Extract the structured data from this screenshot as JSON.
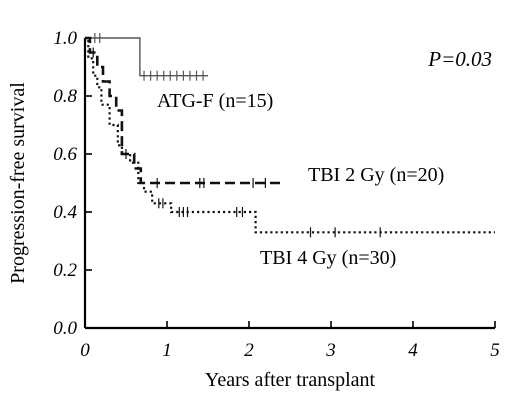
{
  "chart_data": {
    "type": "line",
    "title": "",
    "xlabel": "Years after transplant",
    "ylabel": "Progression-free survival",
    "xlim": [
      0,
      5
    ],
    "ylim": [
      0.0,
      1.0
    ],
    "x_ticks": [
      0,
      1,
      2,
      3,
      4,
      5
    ],
    "x_tick_labels": [
      "0",
      "1",
      "2",
      "3",
      "4",
      "5"
    ],
    "y_ticks": [
      0.0,
      0.2,
      0.4,
      0.6,
      0.8,
      1.0
    ],
    "y_tick_labels": [
      "0.0",
      "0.2",
      "0.4",
      "0.6",
      "0.8",
      "1.0"
    ],
    "annotation": "P=0.03",
    "series": [
      {
        "label": "ATG-F (n=15)",
        "line_style": "solid",
        "color": "#555555",
        "x": [
          0,
          0.67,
          0.67,
          1.5
        ],
        "y": [
          1.0,
          1.0,
          0.87,
          0.87
        ],
        "censor_x": [
          0.12,
          0.18,
          0.72,
          0.8,
          0.88,
          0.96,
          1.04,
          1.12,
          1.2,
          1.28,
          1.36,
          1.44
        ],
        "censor_y": [
          1.0,
          1.0,
          0.87,
          0.87,
          0.87,
          0.87,
          0.87,
          0.87,
          0.87,
          0.87,
          0.87,
          0.87
        ]
      },
      {
        "label": "TBI 2 Gy (n=20)",
        "line_style": "dashed",
        "color": "#111111",
        "x": [
          0,
          0.06,
          0.06,
          0.15,
          0.15,
          0.22,
          0.22,
          0.3,
          0.3,
          0.38,
          0.38,
          0.45,
          0.45,
          0.6,
          0.6,
          0.68,
          0.68,
          2.4
        ],
        "y": [
          1.0,
          1.0,
          0.95,
          0.95,
          0.9,
          0.9,
          0.85,
          0.85,
          0.8,
          0.8,
          0.75,
          0.75,
          0.6,
          0.6,
          0.55,
          0.55,
          0.5,
          0.5
        ],
        "censor_x": [
          0.1,
          0.5,
          0.88,
          1.4,
          1.45,
          2.05,
          2.2
        ],
        "censor_y": [
          0.95,
          0.6,
          0.5,
          0.5,
          0.5,
          0.5,
          0.5
        ]
      },
      {
        "label": "TBI 4 Gy (n=30)",
        "line_style": "dotted",
        "color": "#111111",
        "x": [
          0,
          0.04,
          0.04,
          0.1,
          0.1,
          0.15,
          0.15,
          0.2,
          0.2,
          0.3,
          0.3,
          0.4,
          0.4,
          0.45,
          0.45,
          0.55,
          0.55,
          0.65,
          0.65,
          0.72,
          0.72,
          0.82,
          0.82,
          1.05,
          1.05,
          2.08,
          2.08,
          5.0
        ],
        "y": [
          1.0,
          1.0,
          0.93,
          0.93,
          0.87,
          0.87,
          0.83,
          0.83,
          0.77,
          0.77,
          0.7,
          0.7,
          0.63,
          0.63,
          0.6,
          0.6,
          0.57,
          0.57,
          0.5,
          0.5,
          0.47,
          0.47,
          0.43,
          0.43,
          0.4,
          0.4,
          0.33,
          0.33
        ],
        "censor_x": [
          0.9,
          0.95,
          1.15,
          1.2,
          1.25,
          1.85,
          1.92,
          2.75,
          3.05,
          3.6
        ],
        "censor_y": [
          0.43,
          0.43,
          0.4,
          0.4,
          0.4,
          0.4,
          0.4,
          0.33,
          0.33,
          0.33
        ]
      }
    ]
  }
}
